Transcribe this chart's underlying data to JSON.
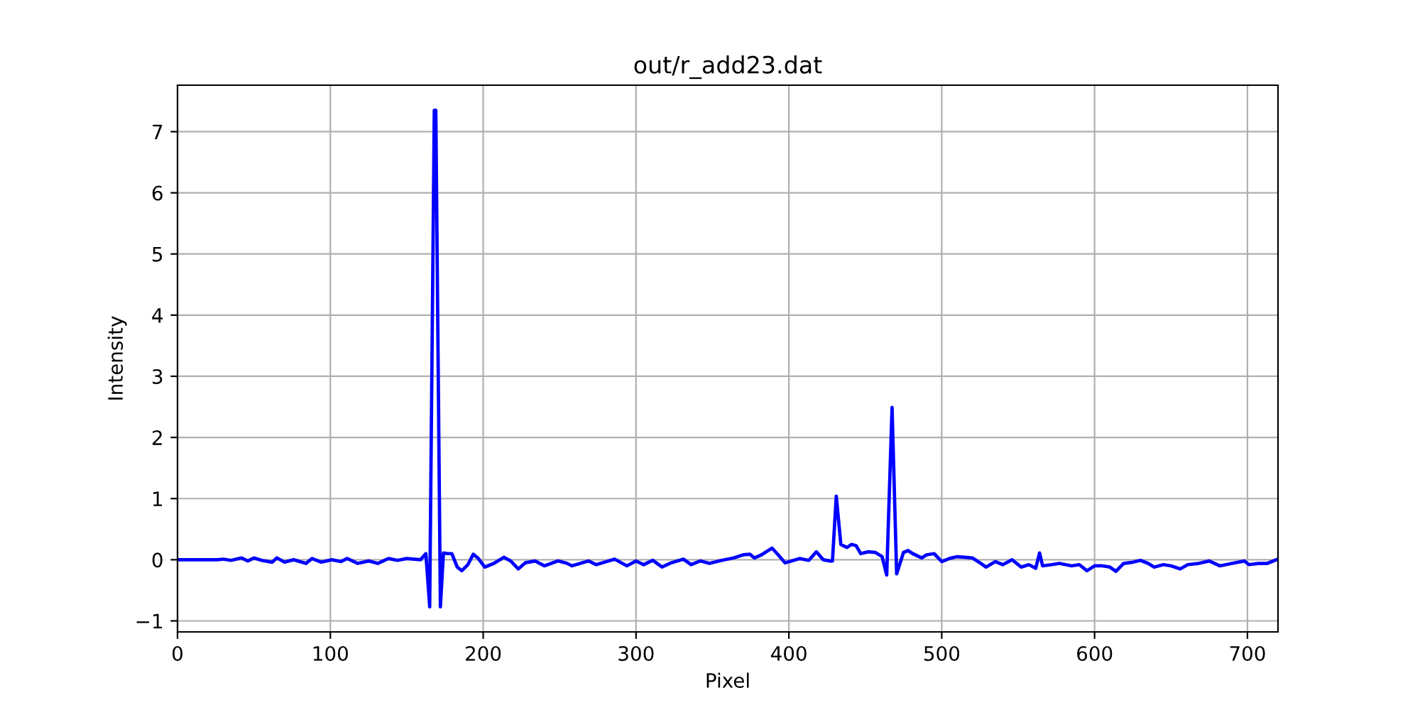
{
  "chart_data": {
    "type": "line",
    "title": "out/r_add23.dat",
    "xlabel": "Pixel",
    "ylabel": "Intensity",
    "x": [
      0,
      26,
      30,
      35,
      42,
      46,
      50,
      55,
      62,
      65,
      70,
      76,
      84,
      88,
      94,
      101,
      107,
      111,
      118,
      125,
      131,
      138,
      144,
      150,
      159,
      162.5,
      165,
      168,
      169,
      172,
      174,
      177,
      179.5,
      183,
      186,
      190,
      193.5,
      196.5,
      201,
      207,
      213.5,
      218,
      223,
      227.5,
      234,
      240,
      249,
      255,
      258,
      269,
      274,
      286,
      294,
      300,
      305,
      311,
      317,
      323,
      331,
      336,
      342,
      348,
      356,
      364,
      370,
      374.5,
      377.5,
      382,
      389,
      393,
      397.5,
      407,
      413,
      418,
      422.5,
      427,
      428.5,
      431,
      434,
      438,
      441,
      444,
      447,
      452,
      456.5,
      461,
      464,
      467.5,
      470.5,
      475,
      478,
      481,
      487,
      490,
      495,
      500,
      505,
      510,
      515,
      520,
      525,
      529,
      535,
      540,
      546,
      552,
      557,
      561.5,
      564,
      566,
      572,
      577,
      585,
      590,
      595,
      600,
      605,
      610,
      614,
      619,
      625,
      630,
      635,
      639,
      645,
      650,
      656,
      661,
      668,
      675,
      682,
      690,
      698,
      701,
      707,
      713,
      719
    ],
    "series": [
      {
        "color": "#0000ff",
        "values": [
          0,
          0,
          0.01,
          -0.01,
          0.03,
          -0.02,
          0.03,
          -0.01,
          -0.04,
          0.03,
          -0.04,
          0,
          -0.06,
          0.02,
          -0.04,
          0,
          -0.03,
          0.02,
          -0.06,
          -0.02,
          -0.06,
          0.02,
          -0.01,
          0.02,
          0,
          0.1,
          -0.77,
          7.35,
          7.35,
          -0.77,
          0.11,
          0.1,
          0.1,
          -0.12,
          -0.18,
          -0.08,
          0.09,
          0.03,
          -0.12,
          -0.06,
          0.04,
          -0.02,
          -0.15,
          -0.05,
          -0.02,
          -0.1,
          -0.02,
          -0.06,
          -0.1,
          -0.02,
          -0.08,
          0.01,
          -0.1,
          -0.02,
          -0.08,
          -0.01,
          -0.12,
          -0.05,
          0.01,
          -0.08,
          -0.02,
          -0.06,
          -0.01,
          0.03,
          0.08,
          0.09,
          0.03,
          0.08,
          0.19,
          0.08,
          -0.05,
          0.02,
          -0.01,
          0.13,
          0,
          -0.02,
          -0.02,
          1.04,
          0.25,
          0.2,
          0.25,
          0.23,
          0.1,
          0.13,
          0.12,
          0.05,
          -0.25,
          2.49,
          -0.23,
          0.12,
          0.15,
          0.1,
          0.03,
          0.08,
          0.1,
          -0.03,
          0.02,
          0.05,
          0.04,
          0.03,
          -0.05,
          -0.12,
          -0.03,
          -0.08,
          0,
          -0.12,
          -0.08,
          -0.14,
          0.11,
          -0.1,
          -0.08,
          -0.06,
          -0.1,
          -0.08,
          -0.18,
          -0.1,
          -0.1,
          -0.12,
          -0.19,
          -0.06,
          -0.04,
          -0.01,
          -0.06,
          -0.12,
          -0.08,
          -0.1,
          -0.15,
          -0.08,
          -0.06,
          -0.02,
          -0.1,
          -0.06,
          -0.02,
          -0.08,
          -0.06,
          -0.06,
          0
        ]
      }
    ],
    "xlim": [
      0,
      720
    ],
    "ylim": [
      -1.18,
      7.76
    ],
    "xticks": [
      0,
      100,
      200,
      300,
      400,
      500,
      600,
      700
    ],
    "yticks": [
      {
        "value": -1,
        "label": "−1"
      },
      0,
      1,
      2,
      3,
      4,
      5,
      6,
      7
    ],
    "grid": true,
    "line_style": "solid",
    "marker": "none"
  }
}
